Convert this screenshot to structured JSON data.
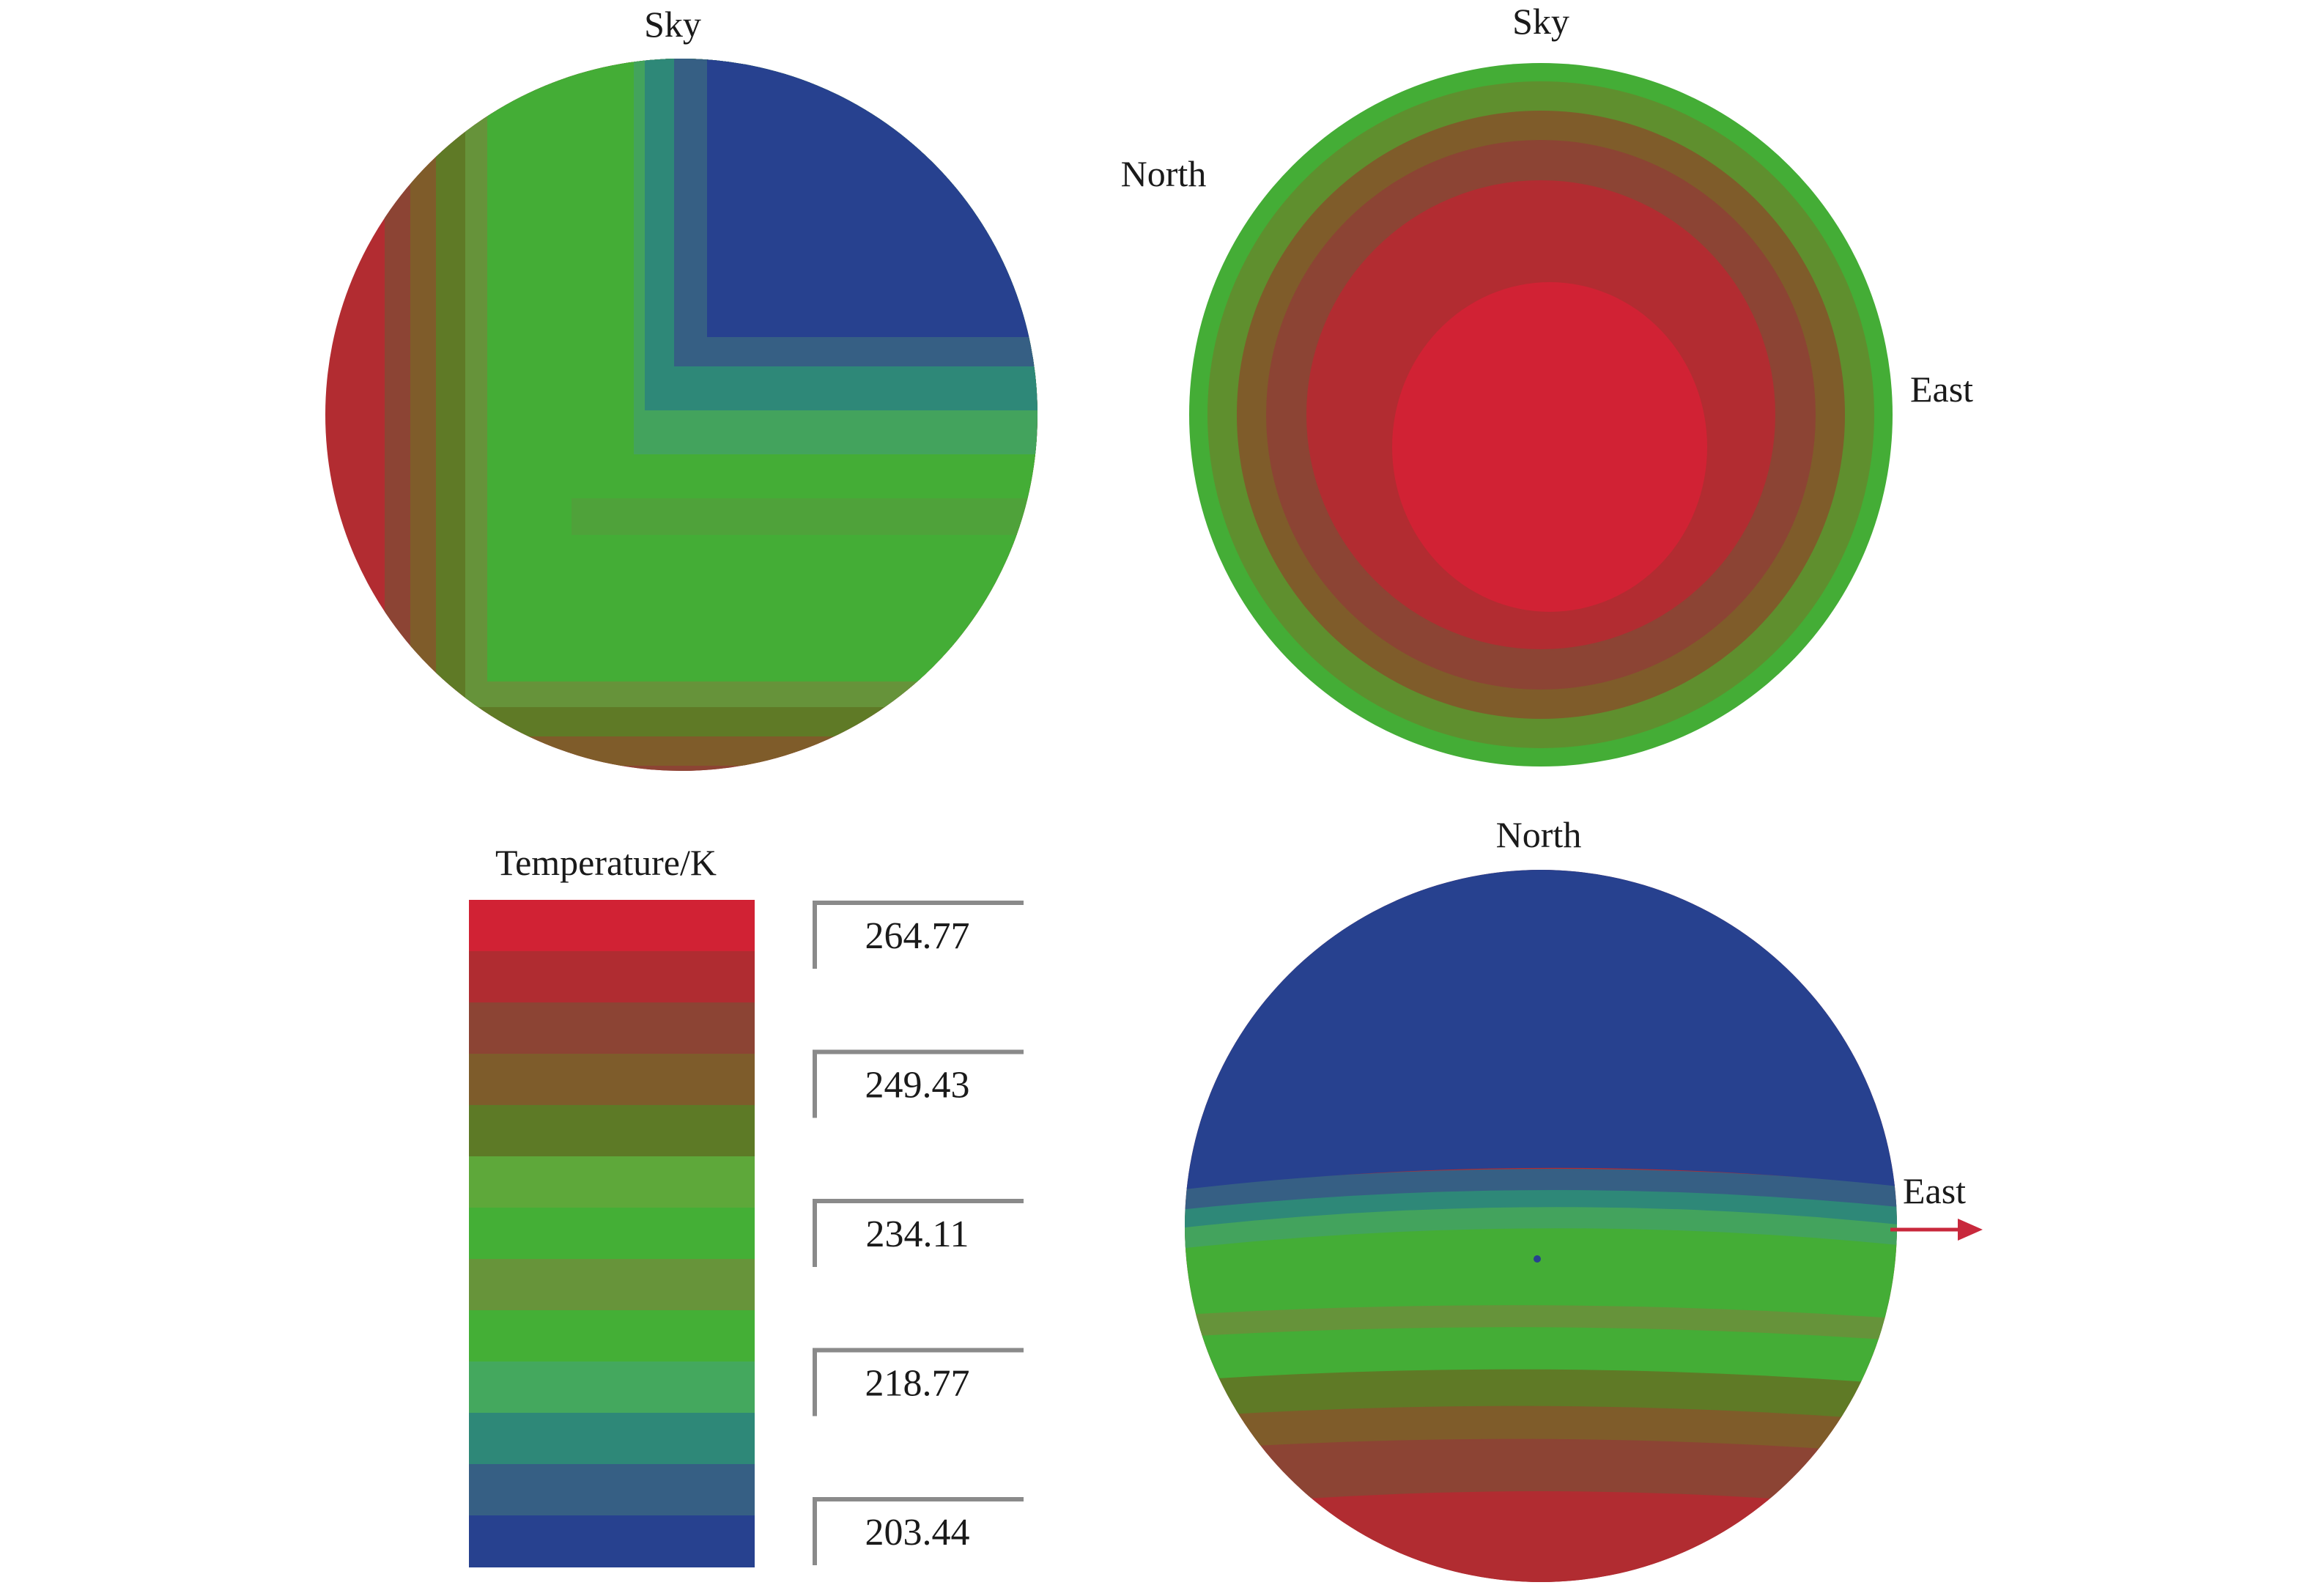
{
  "views": {
    "view1": {
      "top_label": "Sky"
    },
    "view2": {
      "top_label": "Sky",
      "left_label": "North",
      "right_label": "East"
    },
    "view3": {
      "top_label": "North",
      "right_label": "East"
    }
  },
  "legend": {
    "title": "Temperature/K",
    "ticks": [
      "264.77",
      "249.43",
      "234.11",
      "218.77",
      "203.44"
    ],
    "color_bands": [
      "#d12234",
      "#b02c31",
      "#8c4434",
      "#7e5c2b",
      "#5d7a26",
      "#5ea83a",
      "#44af36",
      "#67943a",
      "#44af36",
      "#44a85e",
      "#2e8878",
      "#365f84",
      "#27418f"
    ]
  },
  "colors": {
    "hot": "#d12234",
    "red": "#b12c31",
    "maroon": "#8c4434",
    "olive": "#7f5c2a",
    "dark_green": "#5f7a26",
    "green": "#44ad36",
    "olive_green": "#66933a",
    "sea_green": "#43a35d",
    "teal": "#2e8878",
    "slate": "#365f84",
    "blue": "#27418f",
    "arrow": "#c8283c"
  }
}
